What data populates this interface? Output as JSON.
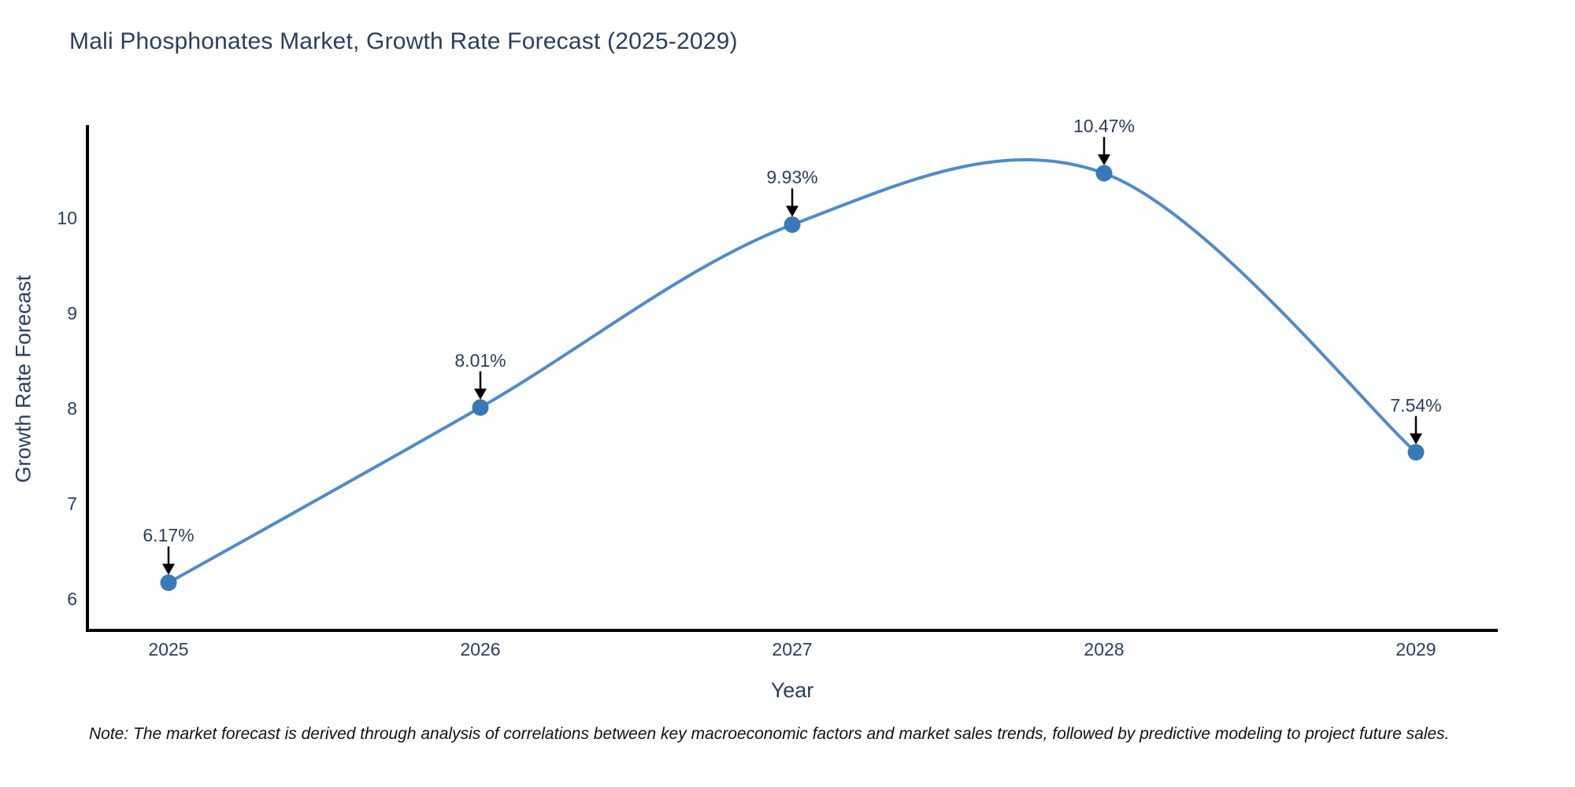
{
  "title": "Mali Phosphonates Market, Growth Rate Forecast (2025-2029)",
  "note": "Note: The market forecast is derived through analysis of correlations between key macroeconomic factors and market sales trends, followed by predictive modeling to project future sales.",
  "chart_data": {
    "type": "line",
    "line_shape": "spline",
    "title": "Mali Phosphonates Market, Growth Rate Forecast (2025-2029)",
    "xlabel": "Year",
    "ylabel": "Growth Rate Forecast",
    "x": [
      2025,
      2026,
      2027,
      2028,
      2029
    ],
    "values": [
      6.17,
      8.01,
      9.93,
      10.47,
      7.54
    ],
    "point_labels": [
      "6.17%",
      "8.01%",
      "9.93%",
      "10.47%",
      "7.54%"
    ],
    "x_tick_labels": [
      "2025",
      "2026",
      "2027",
      "2028",
      "2029"
    ],
    "y_ticks": [
      6,
      7,
      8,
      9,
      10
    ],
    "ylim": [
      5.67,
      10.98
    ],
    "grid": false,
    "legend": "none",
    "annotations_style": "value label with downward arrow to marker",
    "colors": {
      "line": "#4f8bc9",
      "marker": "#3a79b7",
      "arrow": "#000000",
      "axis": "#000000",
      "text": "#2a3f5f",
      "note_text": "#111111",
      "background": "#ffffff"
    }
  }
}
